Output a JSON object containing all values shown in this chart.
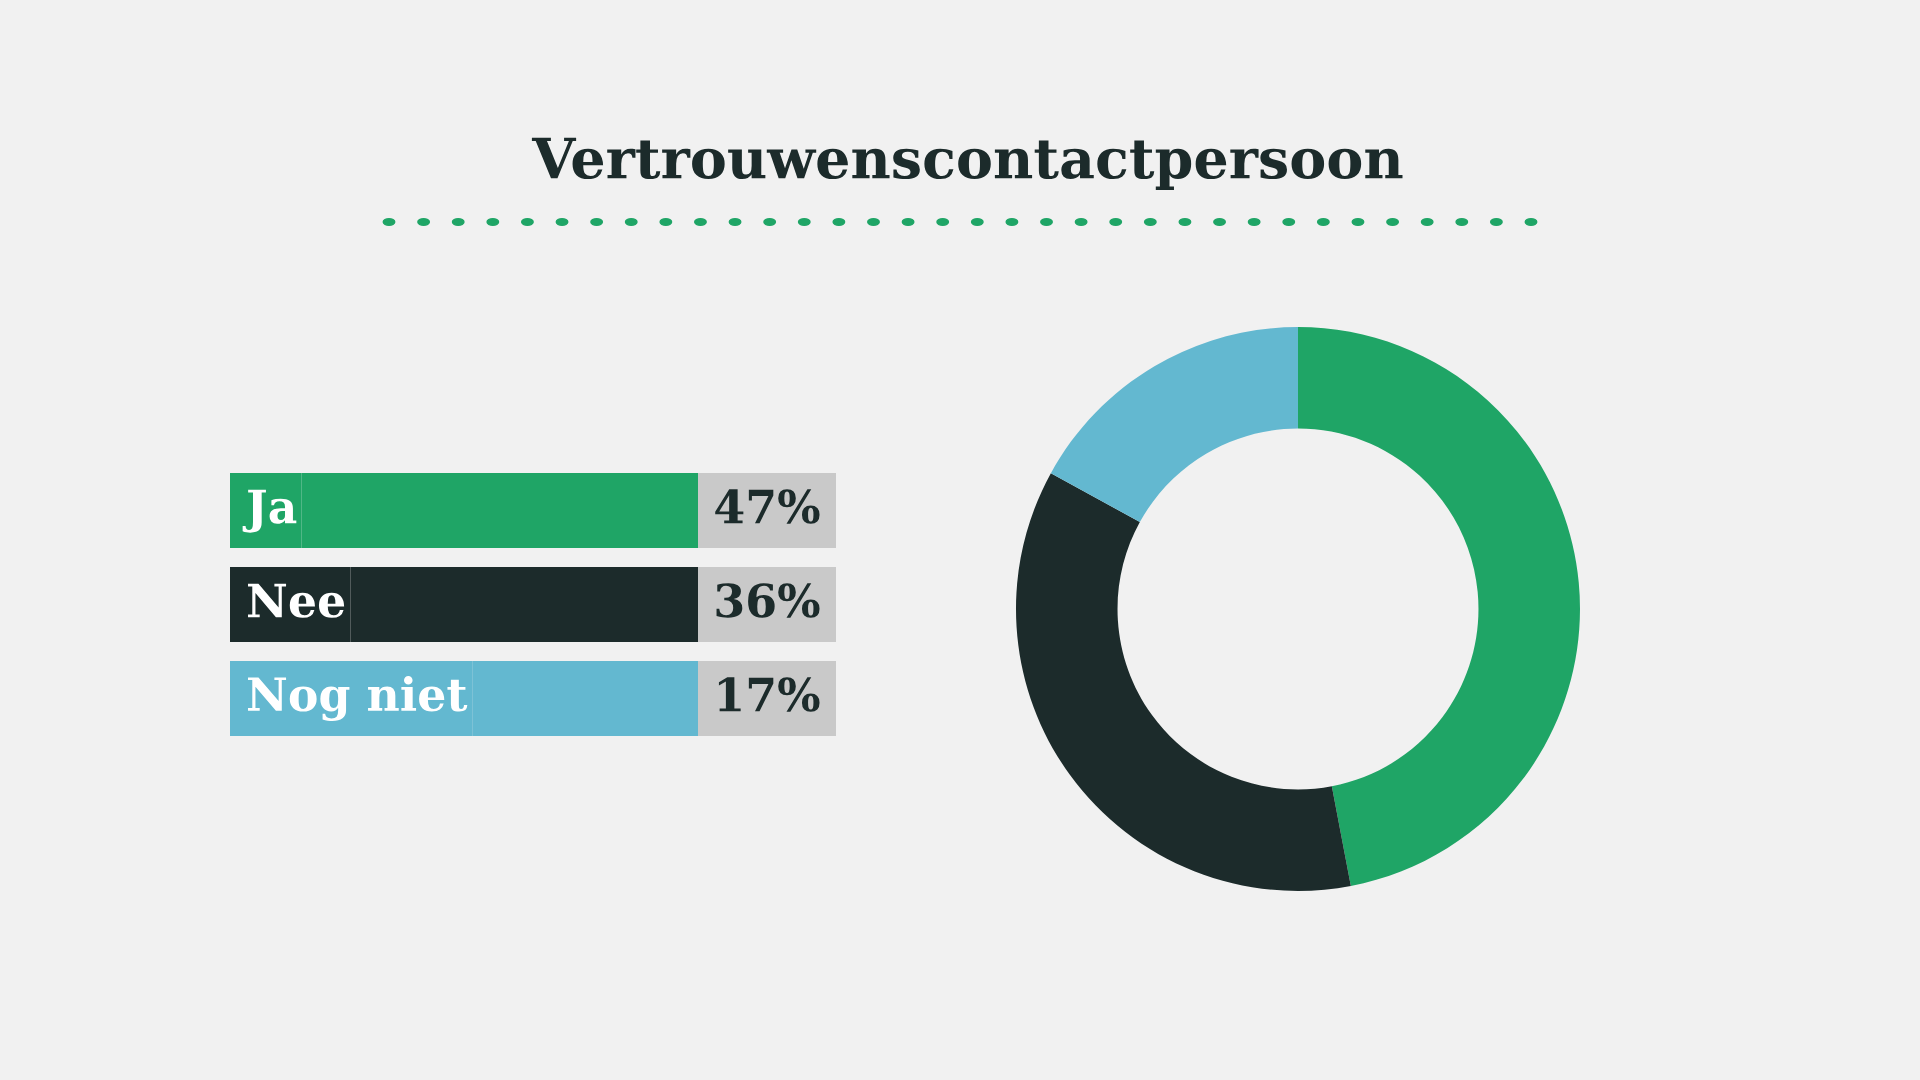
{
  "chart_data": {
    "type": "donut",
    "title": "Vertrouwenscontactpersoon",
    "categories": [
      "Ja",
      "Nee",
      "Nog niet"
    ],
    "values": [
      47,
      36,
      17
    ],
    "colors": [
      "#1fa566",
      "#1c2b2b",
      "#63b8d0"
    ],
    "value_labels": [
      "47%",
      "36%",
      "17%"
    ],
    "legend": "left"
  }
}
